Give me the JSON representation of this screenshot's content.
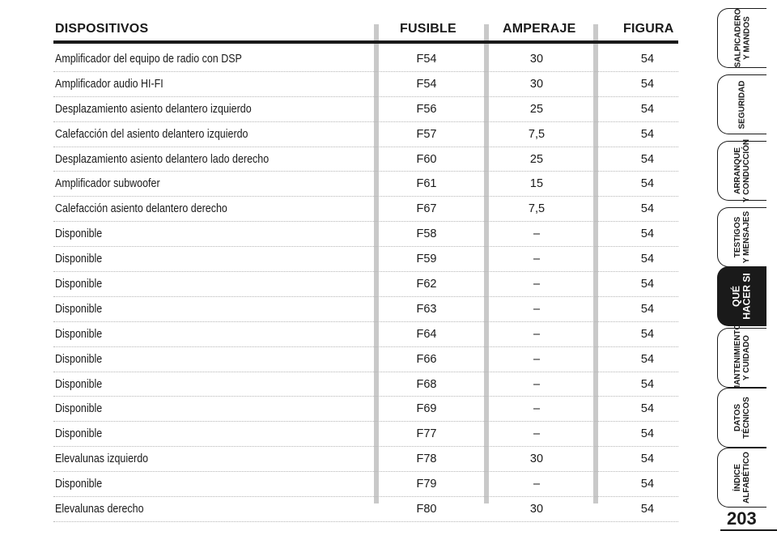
{
  "table": {
    "headers": {
      "device": "DISPOSITIVOS",
      "fuse": "FUSIBLE",
      "amperage": "AMPERAJE",
      "figure": "FIGURA"
    },
    "rows": [
      {
        "device": "Amplificador del equipo de radio con DSP",
        "fuse": "F54",
        "amperage": "30",
        "figure": "54"
      },
      {
        "device": "Amplificador audio HI-FI",
        "fuse": "F54",
        "amperage": "30",
        "figure": "54"
      },
      {
        "device": "Desplazamiento asiento delantero izquierdo",
        "fuse": "F56",
        "amperage": "25",
        "figure": "54"
      },
      {
        "device": "Calefacción del asiento delantero izquierdo",
        "fuse": "F57",
        "amperage": "7,5",
        "figure": "54"
      },
      {
        "device": "Desplazamiento asiento delantero lado derecho",
        "fuse": "F60",
        "amperage": "25",
        "figure": "54"
      },
      {
        "device": "Amplificador subwoofer",
        "fuse": "F61",
        "amperage": "15",
        "figure": "54"
      },
      {
        "device": "Calefacción asiento delantero derecho",
        "fuse": "F67",
        "amperage": "7,5",
        "figure": "54"
      },
      {
        "device": "Disponible",
        "fuse": "F58",
        "amperage": "–",
        "figure": "54"
      },
      {
        "device": "Disponible",
        "fuse": "F59",
        "amperage": "–",
        "figure": "54"
      },
      {
        "device": "Disponible",
        "fuse": "F62",
        "amperage": "–",
        "figure": "54"
      },
      {
        "device": "Disponible",
        "fuse": "F63",
        "amperage": "–",
        "figure": "54"
      },
      {
        "device": "Disponible",
        "fuse": "F64",
        "amperage": "–",
        "figure": "54"
      },
      {
        "device": "Disponible",
        "fuse": "F66",
        "amperage": "–",
        "figure": "54"
      },
      {
        "device": "Disponible",
        "fuse": "F68",
        "amperage": "–",
        "figure": "54"
      },
      {
        "device": "Disponible",
        "fuse": "F69",
        "amperage": "–",
        "figure": "54"
      },
      {
        "device": "Disponible",
        "fuse": "F77",
        "amperage": "–",
        "figure": "54"
      },
      {
        "device": "Elevalunas izquierdo",
        "fuse": "F78",
        "amperage": "30",
        "figure": "54"
      },
      {
        "device": "Disponible",
        "fuse": "F79",
        "amperage": "–",
        "figure": "54"
      },
      {
        "device": "Elevalunas derecho",
        "fuse": "F80",
        "amperage": "30",
        "figure": "54"
      }
    ]
  },
  "side_tabs": [
    {
      "label": "SALPICADERO\nY MANDOS",
      "active": false
    },
    {
      "label": "SEGURIDAD",
      "active": false
    },
    {
      "label": "ARRANQUE\nY CONDUCCIÓN",
      "active": false
    },
    {
      "label": "TESTIGOS\nY MENSAJES",
      "active": false
    },
    {
      "label": "QUÉ\nHACER SI",
      "active": true
    },
    {
      "label": "MANTENIMIENTO\nY CUIDADO",
      "active": false
    },
    {
      "label": "DATOS\nTÉCNICOS",
      "active": false
    },
    {
      "label": "ÍNDICE\nALFABÉTICO",
      "active": false
    }
  ],
  "page_number": "203",
  "colors": {
    "text": "#1a1a1a",
    "separator": "#c9c9c9",
    "active_tab": "#1a1a1a"
  }
}
